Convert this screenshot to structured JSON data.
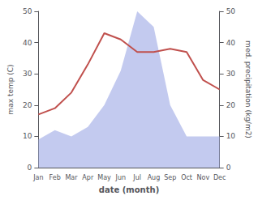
{
  "chart_data": {
    "type": "line",
    "categories": [
      "Jan",
      "Feb",
      "Mar",
      "Apr",
      "May",
      "Jun",
      "Jul",
      "Aug",
      "Sep",
      "Oct",
      "Nov",
      "Dec"
    ],
    "series": [
      {
        "type": "area",
        "color": "#aab4e8",
        "axis": "y2",
        "values": [
          9,
          12,
          10,
          13,
          20,
          31,
          50,
          45,
          20,
          10,
          10,
          10
        ]
      },
      {
        "type": "line",
        "color": "#c0504d",
        "values": [
          17,
          19,
          24,
          33,
          43,
          41,
          37,
          37,
          38,
          37,
          28,
          25
        ]
      }
    ],
    "xlabel": "date (month)",
    "ylabel": "max temp (C)",
    "y2label": "med. precipitation (kg/m2)",
    "ylim": [
      0,
      50
    ],
    "yticks": [
      0,
      10,
      20,
      30,
      40,
      50
    ],
    "y2lim": [
      0,
      50
    ],
    "y2ticks": [
      0,
      10,
      20,
      30,
      40,
      50
    ],
    "grid": false
  }
}
